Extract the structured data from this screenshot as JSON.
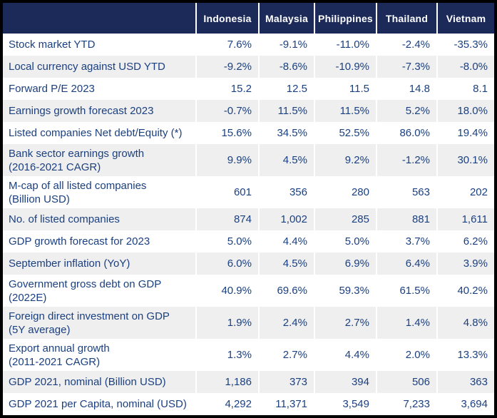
{
  "chart_data": {
    "type": "table",
    "columns": [
      "Indonesia",
      "Malaysia",
      "Philippines",
      "Thailand",
      "Vietnam"
    ],
    "rows": [
      {
        "label": "Stock market YTD",
        "values": [
          "7.6%",
          "-9.1%",
          "-11.0%",
          "-2.4%",
          "-35.3%"
        ]
      },
      {
        "label": "Local currency against USD YTD",
        "values": [
          "-9.2%",
          "-8.6%",
          "-10.9%",
          "-7.3%",
          "-8.0%"
        ]
      },
      {
        "label": "Forward P/E 2023",
        "values": [
          "15.2",
          "12.5",
          "11.5",
          "14.8",
          "8.1"
        ]
      },
      {
        "label": "Earnings growth forecast 2023",
        "values": [
          "-0.7%",
          "11.5%",
          "11.5%",
          "5.2%",
          "18.0%"
        ]
      },
      {
        "label": "Listed companies Net debt/Equity (*)",
        "values": [
          "15.6%",
          "34.5%",
          "52.5%",
          "86.0%",
          "19.4%"
        ]
      },
      {
        "label": "Bank sector earnings growth\n(2016-2021 CAGR)",
        "values": [
          "9.9%",
          "4.5%",
          "9.2%",
          "-1.2%",
          "30.1%"
        ]
      },
      {
        "label": "M-cap of all listed companies\n(Billion USD)",
        "values": [
          "601",
          "356",
          "280",
          "563",
          "202"
        ]
      },
      {
        "label": "No. of listed companies",
        "values": [
          "874",
          "1,002",
          "285",
          "881",
          "1,611"
        ]
      },
      {
        "label": "GDP growth forecast for 2023",
        "values": [
          "5.0%",
          "4.4%",
          "5.0%",
          "3.7%",
          "6.2%"
        ]
      },
      {
        "label": "September inflation (YoY)",
        "values": [
          "6.0%",
          "4.5%",
          "6.9%",
          "6.4%",
          "3.9%"
        ]
      },
      {
        "label": "Government gross debt on GDP\n(2022E)",
        "values": [
          "40.9%",
          "69.6%",
          "59.3%",
          "61.5%",
          "40.2%"
        ]
      },
      {
        "label": "Foreign direct investment on GDP\n(5Y average)",
        "values": [
          "1.9%",
          "2.4%",
          "2.7%",
          "1.4%",
          "4.8%"
        ]
      },
      {
        "label": "Export annual growth\n(2011-2021 CAGR)",
        "values": [
          "1.3%",
          "2.7%",
          "4.4%",
          "2.0%",
          "13.3%"
        ]
      },
      {
        "label": "GDP 2021, nominal (Billion USD)",
        "values": [
          "1,186",
          "373",
          "394",
          "506",
          "363"
        ]
      },
      {
        "label": "GDP 2021 per Capita, nominal (USD)",
        "values": [
          "4,292",
          "11,371",
          "3,549",
          "7,233",
          "3,694"
        ]
      }
    ]
  },
  "colors": {
    "frame": "#000000",
    "header_bg": "#1b2a59",
    "header_text": "#ffffff",
    "body_text": "#1b4080",
    "row_bg": "#ffffff",
    "row_alt": "#efefef",
    "divider": "#ffffff"
  }
}
